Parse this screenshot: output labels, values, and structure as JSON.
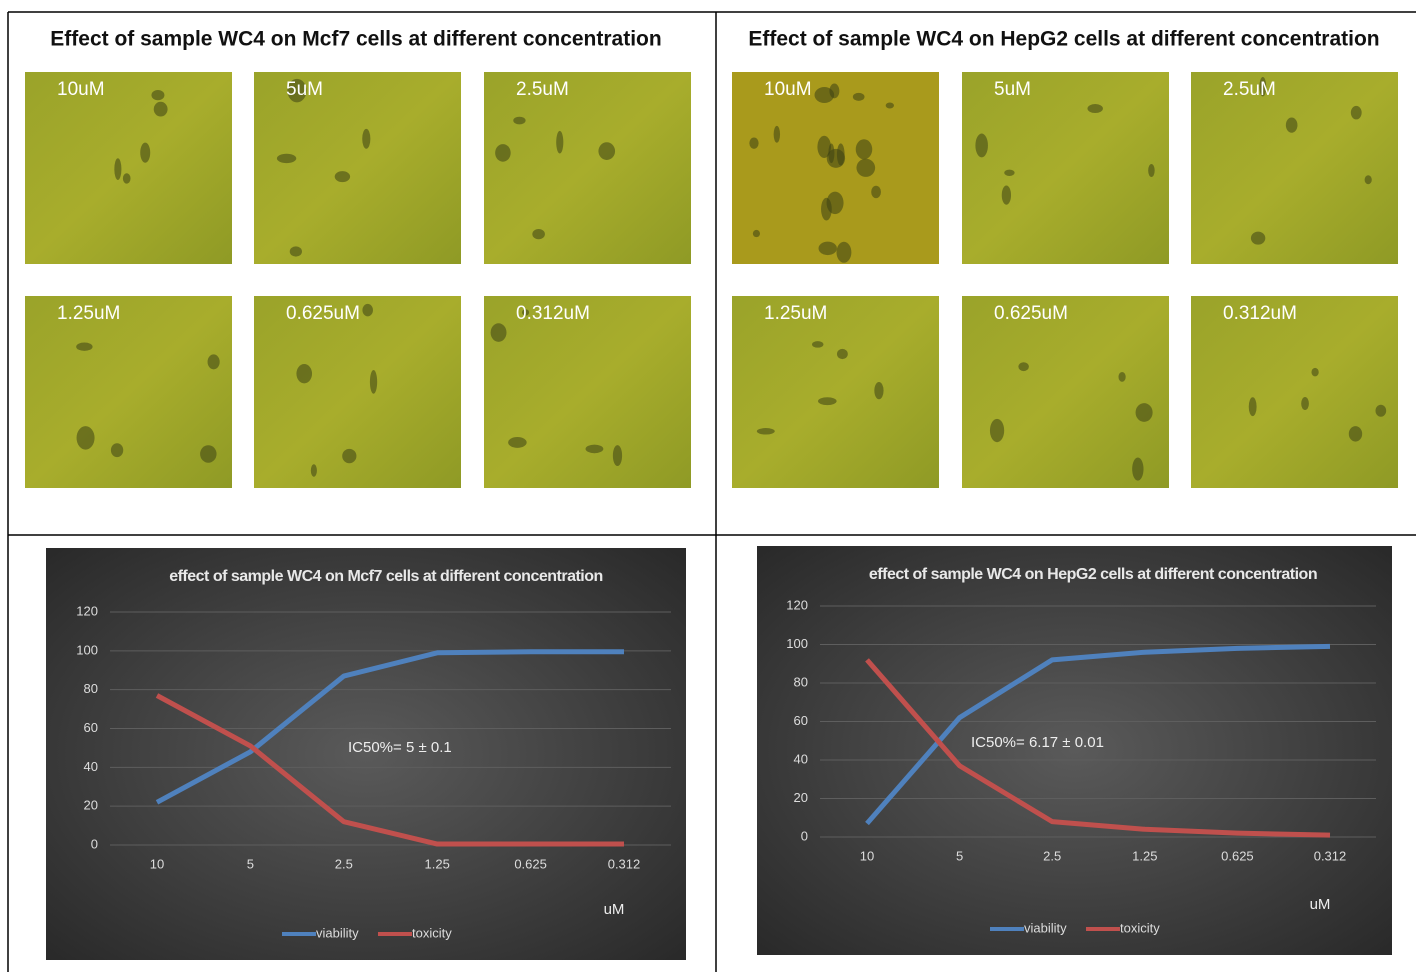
{
  "panels": [
    {
      "title": "Effect of sample WC4 on Mcf7 cells at different concentration",
      "images": [
        "10uM",
        "5uM",
        "2.5uM",
        "1.25uM",
        "0.625uM",
        "0.312uM"
      ]
    },
    {
      "title": "Effect of sample WC4 on HepG2 cells at different concentration",
      "images": [
        "10uM",
        "5uM",
        "2.5uM",
        "1.25uM",
        "0.625uM",
        "0.312uM"
      ]
    }
  ],
  "chart_data": [
    {
      "type": "line",
      "title": "effect of sample WC4 on Mcf7 cells at different concentration",
      "categories": [
        "10",
        "5",
        "2.5",
        "1.25",
        "0.625",
        "0.312"
      ],
      "x_label": "uM",
      "annotation": "IC50%= 5 ± 0.1",
      "series": [
        {
          "name": "viability",
          "color": "#4f81bd",
          "values": [
            22,
            48,
            87,
            99,
            99.5,
            99.5
          ]
        },
        {
          "name": "toxicity",
          "color": "#c0504d",
          "values": [
            77,
            51,
            12,
            0.5,
            0.5,
            0.5
          ]
        }
      ],
      "ylim": [
        0,
        120
      ],
      "yticks": [
        0,
        20,
        40,
        60,
        80,
        100,
        120
      ],
      "grid": true,
      "legend": "bottom"
    },
    {
      "type": "line",
      "title": "effect of sample WC4 on HepG2 cells at different concentration",
      "categories": [
        "10",
        "5",
        "2.5",
        "1.25",
        "0.625",
        "0.312"
      ],
      "x_label": "uM",
      "annotation": "IC50%= 6.17 ± 0.01",
      "series": [
        {
          "name": "viability",
          "color": "#4f81bd",
          "values": [
            7,
            62,
            92,
            96,
            98,
            99
          ]
        },
        {
          "name": "toxicity",
          "color": "#c0504d",
          "values": [
            92,
            37,
            8,
            4,
            2,
            1
          ]
        }
      ],
      "ylim": [
        0,
        120
      ],
      "yticks": [
        0,
        20,
        40,
        60,
        80,
        100,
        120
      ],
      "grid": true,
      "legend": "bottom"
    }
  ]
}
